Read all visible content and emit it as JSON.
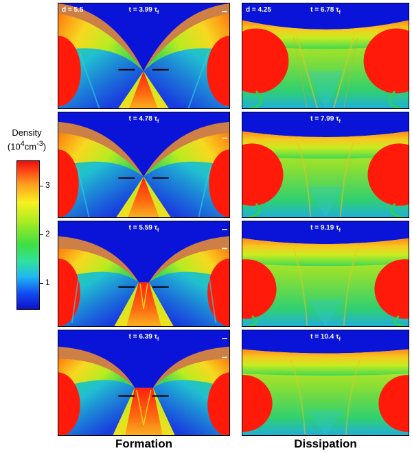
{
  "colorbar": {
    "title": "Density",
    "unit_html": "(10<sup>4</sup>cm<sup>-3</sup>)",
    "ticks": [
      "3",
      "2",
      "1"
    ]
  },
  "columns": {
    "formation": "Formation",
    "dissipation": "Dissipation"
  },
  "formation_panels": [
    {
      "d": "d = 5.5",
      "t": "t = 3.99 τ",
      "sub": "f"
    },
    {
      "d": "",
      "t": "t = 4.78 τ",
      "sub": "f"
    },
    {
      "d": "",
      "t": "t = 5.59 τ",
      "sub": "f"
    },
    {
      "d": "",
      "t": "t = 6.39 τ",
      "sub": "f"
    }
  ],
  "dissipation_panels": [
    {
      "d": "d = 4.25",
      "t": "t = 6.78 τ",
      "sub": "f"
    },
    {
      "d": "",
      "t": "t = 7.99 τ",
      "sub": "f"
    },
    {
      "d": "",
      "t": "t = 9.19 τ",
      "sub": "f"
    },
    {
      "d": "",
      "t": "t = 10.4 τ",
      "sub": "f"
    }
  ],
  "colors": {
    "background": "#0a14d8",
    "clump": "#ff1a0a",
    "shell_outer": "#ff8a1a",
    "shell_inner": "#d8f018",
    "mid_green": "#30d040",
    "cyan": "#20c8e8"
  }
}
